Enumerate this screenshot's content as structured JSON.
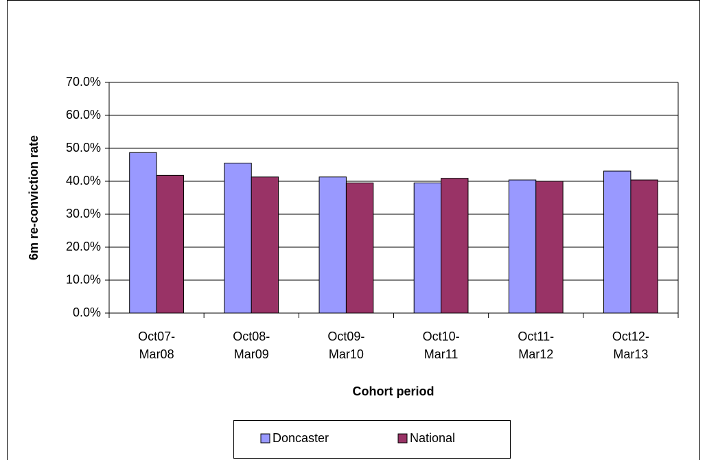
{
  "chart_data": {
    "type": "bar",
    "x_label": "Cohort period",
    "y_label": "6m re-conviction rate",
    "categories": [
      "Oct07-\nMar08",
      "Oct08-\nMar09",
      "Oct09-\nMar10",
      "Oct10-\nMar11",
      "Oct11-\nMar12",
      "Oct12-\nMar13"
    ],
    "series": [
      {
        "name": "Doncaster",
        "color": "#9999ff",
        "values": [
          48.7,
          45.5,
          41.3,
          39.5,
          40.4,
          43.1
        ]
      },
      {
        "name": "National",
        "color": "#993366",
        "values": [
          41.8,
          41.3,
          39.5,
          40.9,
          40.0,
          40.4
        ]
      }
    ],
    "ylim": [
      0,
      70
    ],
    "yticks": [
      {
        "value": 0,
        "label": "0.0%"
      },
      {
        "value": 10,
        "label": "10.0%"
      },
      {
        "value": 20,
        "label": "20.0%"
      },
      {
        "value": 30,
        "label": "30.0%"
      },
      {
        "value": 40,
        "label": "40.0%"
      },
      {
        "value": 50,
        "label": "50.0%"
      },
      {
        "value": 60,
        "label": "60.0%"
      },
      {
        "value": 70,
        "label": "70.0%"
      }
    ],
    "grid": true,
    "legend": "bottom"
  }
}
